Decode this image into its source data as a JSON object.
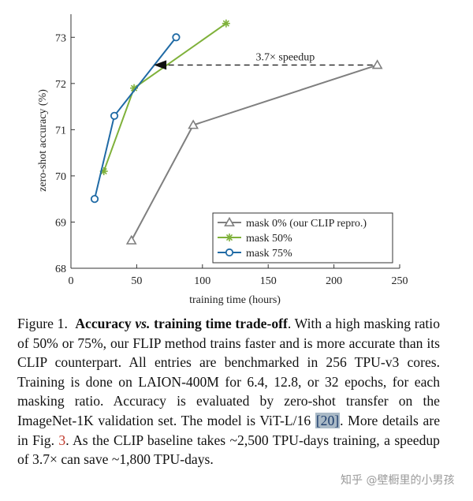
{
  "chart_data": {
    "type": "line",
    "xlabel": "training time (hours)",
    "ylabel": "zero-shot accuracy (%)",
    "xlim": [
      0,
      250
    ],
    "ylim": [
      68,
      73.5
    ],
    "xticks": [
      0,
      50,
      100,
      150,
      200,
      250
    ],
    "yticks": [
      68,
      69,
      70,
      71,
      72,
      73
    ],
    "grid": false,
    "legend_position": "bottom-right",
    "series": [
      {
        "name": "mask 0% (our CLIP repro.)",
        "color": "#7f7f7f",
        "marker": "triangle",
        "x": [
          46,
          93,
          233
        ],
        "y": [
          68.6,
          71.1,
          72.4
        ]
      },
      {
        "name": "mask 50%",
        "color": "#7fb13a",
        "marker": "star",
        "x": [
          25,
          48,
          118
        ],
        "y": [
          70.1,
          71.9,
          73.3
        ]
      },
      {
        "name": "mask 75%",
        "color": "#1f6aa5",
        "marker": "circle",
        "x": [
          18,
          33,
          80
        ],
        "y": [
          69.5,
          71.3,
          73.0
        ]
      }
    ],
    "annotation": {
      "text": "3.7× speedup",
      "from": [
        233,
        72.4
      ],
      "to": [
        63,
        72.4
      ]
    }
  },
  "caption": {
    "lead": "Figure 1.",
    "title_pre": "Accuracy ",
    "title_vs": "vs.",
    "title_post": " training time trade-off",
    "t1": ". With a high masking ratio of 50% or 75%, our FLIP method trains faster and is more accurate than its CLIP counterpart. All entries are benchmarked in 256 TPU-v3 cores. Training is done on LAION-400M for 6.4, 12.8, or 32 epochs, for each masking ratio. Accuracy is evaluated by zero-shot transfer on the ImageNet-1K validation set. The model is ViT-L/16 ",
    "ref1": "[20]",
    "t2": ". More details are in Fig. ",
    "ref2": "3",
    "t3": ". As the CLIP baseline takes ~2,500 TPU-days training, a speedup of 3.7× can save ~1,800 TPU-days."
  },
  "watermark": "知乎 @壁橱里的小男孩"
}
